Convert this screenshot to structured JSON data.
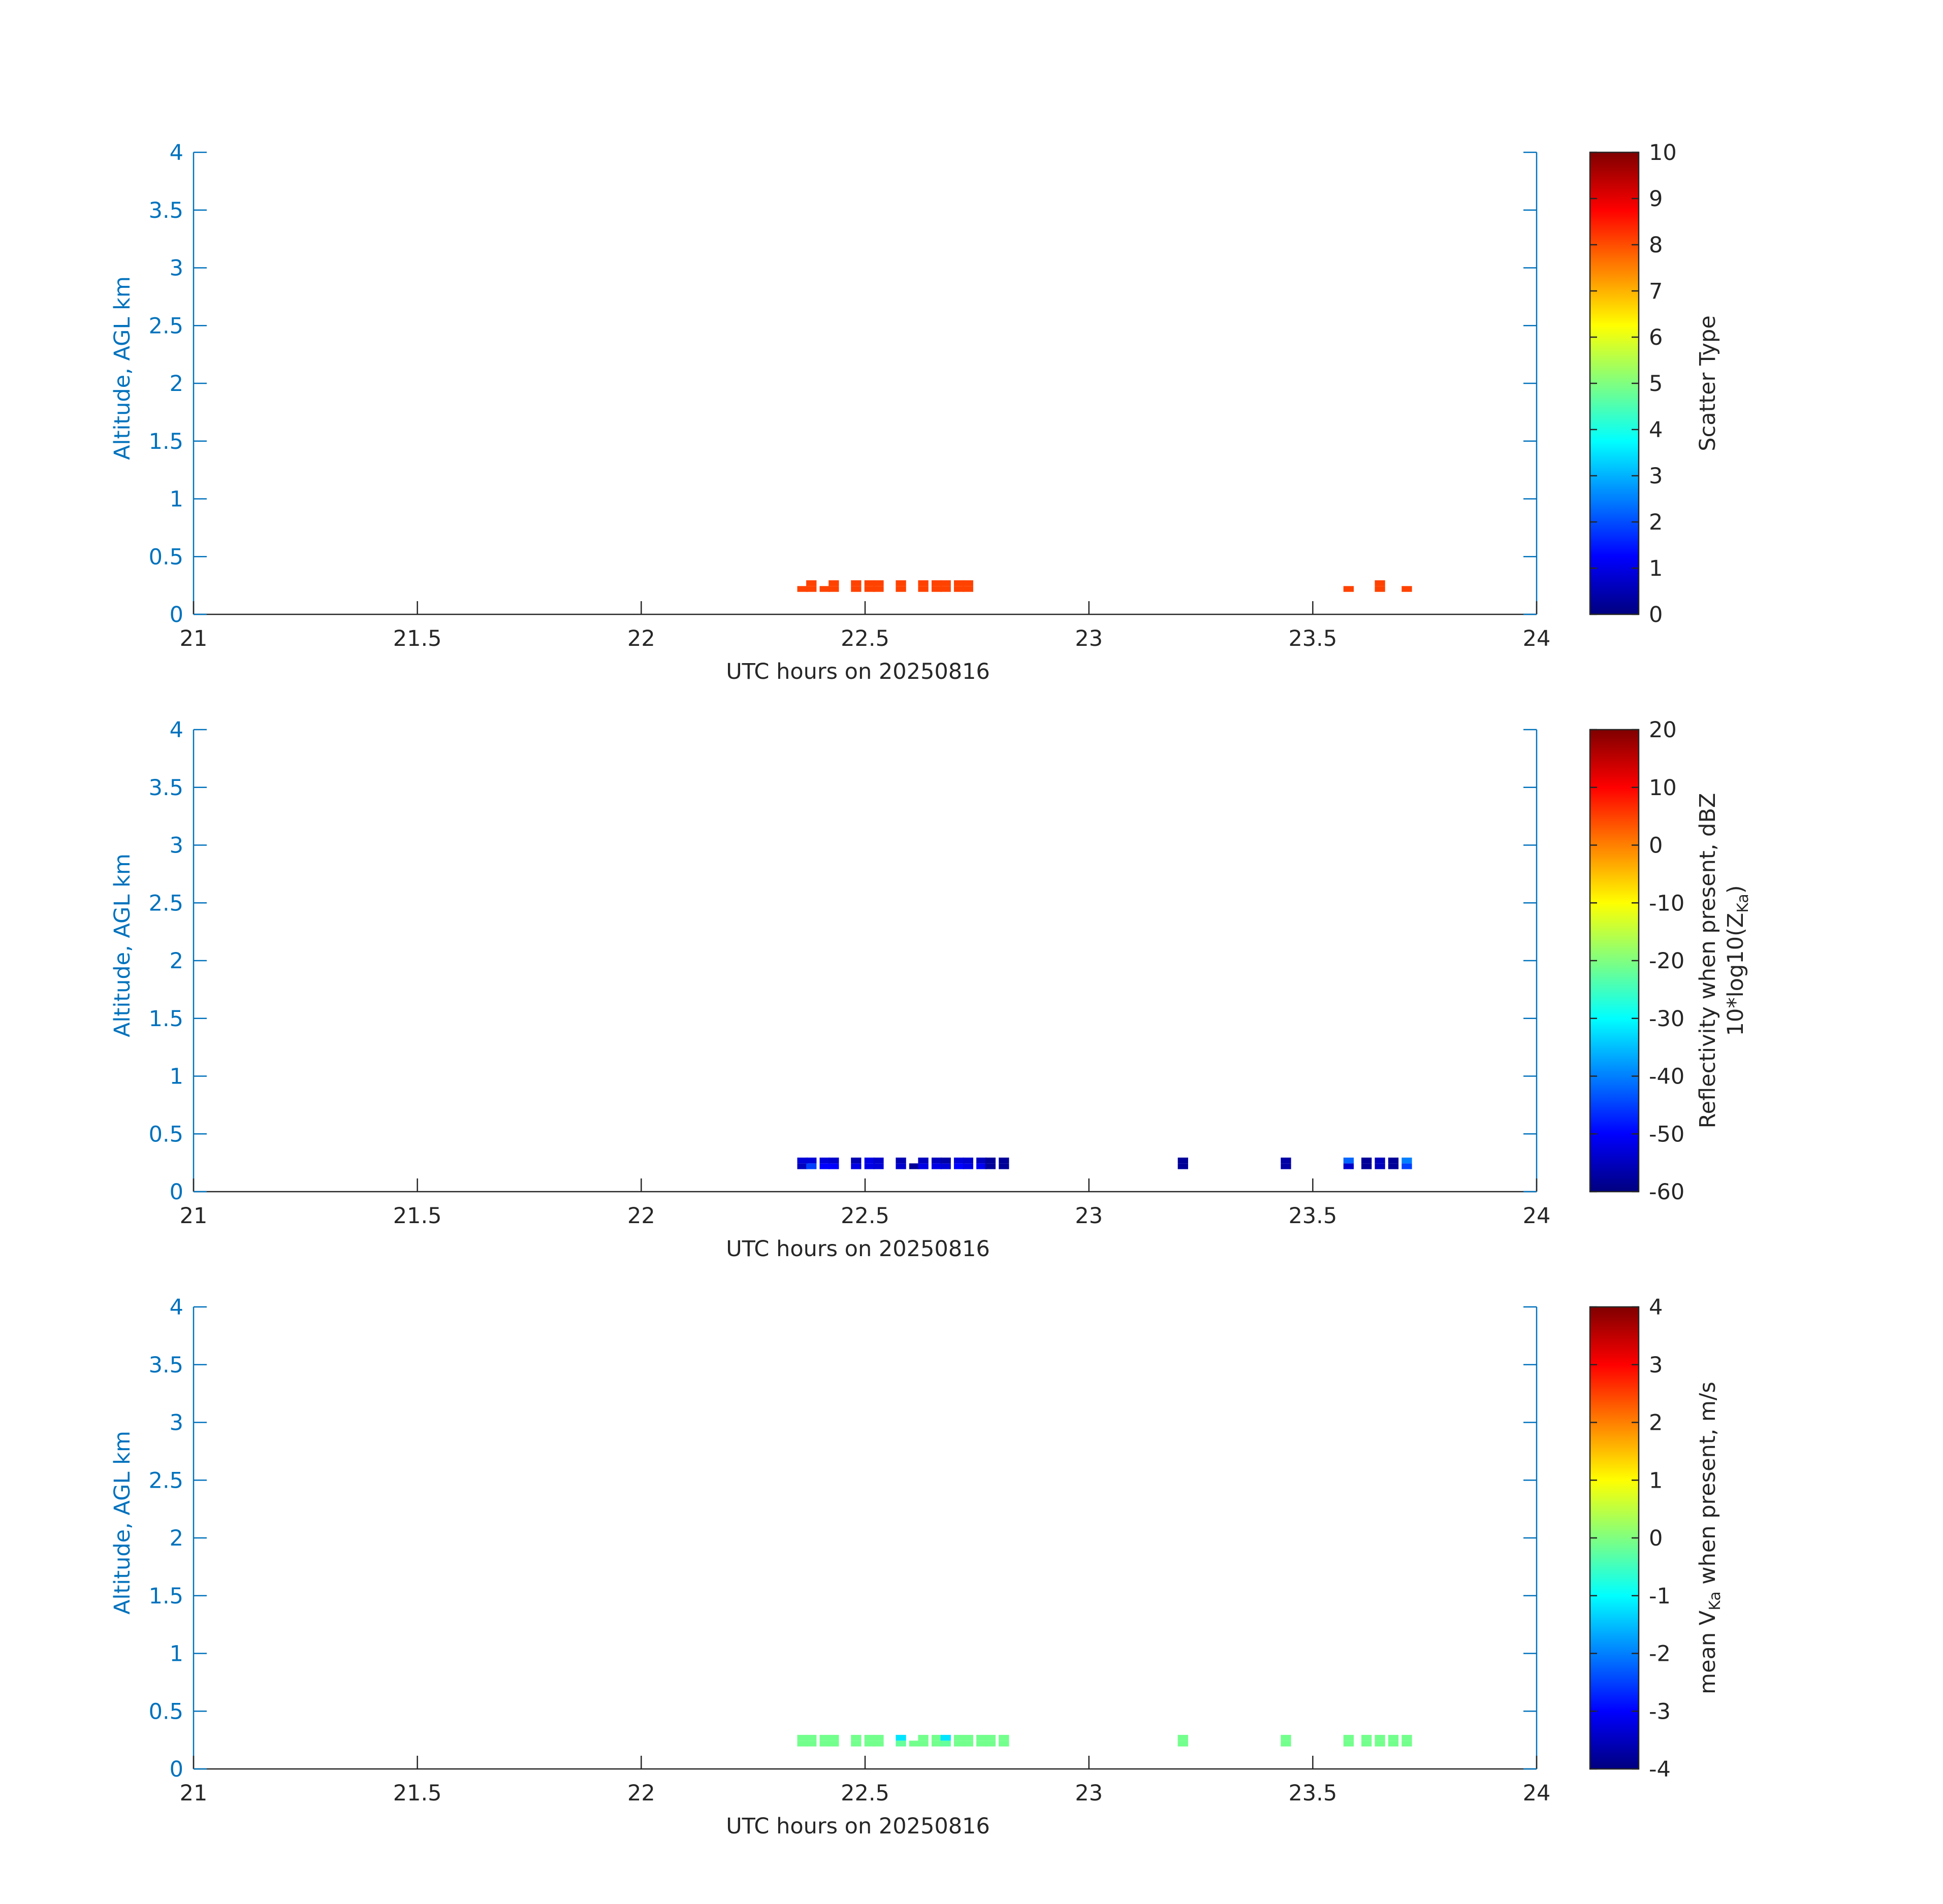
{
  "colors": {
    "y_axis": "#0072BD",
    "x_axis": "#262626",
    "colormap": "jet"
  },
  "chart_data": [
    {
      "type": "heatmap",
      "xlabel": "UTC hours on 20250816",
      "ylabel": "Altitude, AGL km",
      "xlim": [
        21,
        24
      ],
      "ylim": [
        0,
        4
      ],
      "xticks": [
        "21",
        "21.5",
        "22",
        "22.5",
        "23",
        "23.5",
        "24"
      ],
      "yticks": [
        "0",
        "0.5",
        "1",
        "1.5",
        "2",
        "2.5",
        "3",
        "3.5",
        "4"
      ],
      "colorbar": {
        "label": "Scatter Type",
        "label2": "",
        "limits": [
          0,
          10
        ],
        "ticks": [
          "0",
          "1",
          "2",
          "3",
          "4",
          "5",
          "6",
          "7",
          "8",
          "9",
          "10"
        ]
      },
      "cells": [
        {
          "t": 22.36,
          "alt": 0.22,
          "value": 8.1
        },
        {
          "t": 22.38,
          "alt": 0.22,
          "value": 8.1
        },
        {
          "t": 22.38,
          "alt": 0.27,
          "value": 8.1
        },
        {
          "t": 22.41,
          "alt": 0.22,
          "value": 8.1
        },
        {
          "t": 22.43,
          "alt": 0.22,
          "value": 8.1
        },
        {
          "t": 22.43,
          "alt": 0.27,
          "value": 8.1
        },
        {
          "t": 22.48,
          "alt": 0.22,
          "value": 8.1
        },
        {
          "t": 22.48,
          "alt": 0.27,
          "value": 8.1
        },
        {
          "t": 22.51,
          "alt": 0.22,
          "value": 8.1
        },
        {
          "t": 22.51,
          "alt": 0.27,
          "value": 8.1
        },
        {
          "t": 22.53,
          "alt": 0.22,
          "value": 8.1
        },
        {
          "t": 22.53,
          "alt": 0.27,
          "value": 8.1
        },
        {
          "t": 22.58,
          "alt": 0.22,
          "value": 8.1
        },
        {
          "t": 22.58,
          "alt": 0.27,
          "value": 8.1
        },
        {
          "t": 22.63,
          "alt": 0.22,
          "value": 8.1
        },
        {
          "t": 22.63,
          "alt": 0.27,
          "value": 8.1
        },
        {
          "t": 22.66,
          "alt": 0.22,
          "value": 8.1
        },
        {
          "t": 22.66,
          "alt": 0.27,
          "value": 8.1
        },
        {
          "t": 22.68,
          "alt": 0.22,
          "value": 8.1
        },
        {
          "t": 22.68,
          "alt": 0.27,
          "value": 8.1
        },
        {
          "t": 22.71,
          "alt": 0.22,
          "value": 8.1
        },
        {
          "t": 22.71,
          "alt": 0.27,
          "value": 8.1
        },
        {
          "t": 22.73,
          "alt": 0.22,
          "value": 8.1
        },
        {
          "t": 22.73,
          "alt": 0.27,
          "value": 8.1
        },
        {
          "t": 23.58,
          "alt": 0.22,
          "value": 8.1
        },
        {
          "t": 23.65,
          "alt": 0.22,
          "value": 8.1
        },
        {
          "t": 23.65,
          "alt": 0.27,
          "value": 8.1
        },
        {
          "t": 23.71,
          "alt": 0.22,
          "value": 8.1
        }
      ]
    },
    {
      "type": "heatmap",
      "xlabel": "UTC hours on 20250816",
      "ylabel": "Altitude, AGL km",
      "xlim": [
        21,
        24
      ],
      "ylim": [
        0,
        4
      ],
      "xticks": [
        "21",
        "21.5",
        "22",
        "22.5",
        "23",
        "23.5",
        "24"
      ],
      "yticks": [
        "0",
        "0.5",
        "1",
        "1.5",
        "2",
        "2.5",
        "3",
        "3.5",
        "4"
      ],
      "colorbar": {
        "label": "Reflectivity when present, dBZ",
        "label2": "10*log10(Z",
        "label2_sub": "Ka",
        "label2_end": ")",
        "limits": [
          -60,
          20
        ],
        "ticks": [
          "-60",
          "-50",
          "-40",
          "-30",
          "-20",
          "-10",
          "0",
          "10",
          "20"
        ]
      },
      "cells": [
        {
          "t": 22.36,
          "alt": 0.22,
          "value": -55
        },
        {
          "t": 22.36,
          "alt": 0.27,
          "value": -53
        },
        {
          "t": 22.38,
          "alt": 0.22,
          "value": -45
        },
        {
          "t": 22.38,
          "alt": 0.27,
          "value": -53
        },
        {
          "t": 22.41,
          "alt": 0.22,
          "value": -50
        },
        {
          "t": 22.41,
          "alt": 0.27,
          "value": -53
        },
        {
          "t": 22.43,
          "alt": 0.22,
          "value": -50
        },
        {
          "t": 22.43,
          "alt": 0.27,
          "value": -54
        },
        {
          "t": 22.48,
          "alt": 0.22,
          "value": -52
        },
        {
          "t": 22.48,
          "alt": 0.27,
          "value": -56
        },
        {
          "t": 22.51,
          "alt": 0.22,
          "value": -52
        },
        {
          "t": 22.51,
          "alt": 0.27,
          "value": -52
        },
        {
          "t": 22.53,
          "alt": 0.22,
          "value": -53
        },
        {
          "t": 22.53,
          "alt": 0.27,
          "value": -54
        },
        {
          "t": 22.58,
          "alt": 0.22,
          "value": -54
        },
        {
          "t": 22.58,
          "alt": 0.27,
          "value": -56
        },
        {
          "t": 22.61,
          "alt": 0.22,
          "value": -58
        },
        {
          "t": 22.63,
          "alt": 0.22,
          "value": -52
        },
        {
          "t": 22.63,
          "alt": 0.27,
          "value": -55
        },
        {
          "t": 22.66,
          "alt": 0.22,
          "value": -52
        },
        {
          "t": 22.66,
          "alt": 0.27,
          "value": -55
        },
        {
          "t": 22.68,
          "alt": 0.22,
          "value": -53
        },
        {
          "t": 22.68,
          "alt": 0.27,
          "value": -57
        },
        {
          "t": 22.71,
          "alt": 0.22,
          "value": -50
        },
        {
          "t": 22.71,
          "alt": 0.27,
          "value": -53
        },
        {
          "t": 22.73,
          "alt": 0.22,
          "value": -52
        },
        {
          "t": 22.73,
          "alt": 0.27,
          "value": -54
        },
        {
          "t": 22.76,
          "alt": 0.22,
          "value": -51
        },
        {
          "t": 22.76,
          "alt": 0.27,
          "value": -55
        },
        {
          "t": 22.78,
          "alt": 0.22,
          "value": -58
        },
        {
          "t": 22.78,
          "alt": 0.27,
          "value": -58
        },
        {
          "t": 22.81,
          "alt": 0.22,
          "value": -58
        },
        {
          "t": 22.81,
          "alt": 0.27,
          "value": -58
        },
        {
          "t": 23.21,
          "alt": 0.22,
          "value": -58
        },
        {
          "t": 23.21,
          "alt": 0.27,
          "value": -58
        },
        {
          "t": 23.44,
          "alt": 0.22,
          "value": -57
        },
        {
          "t": 23.44,
          "alt": 0.27,
          "value": -57
        },
        {
          "t": 23.58,
          "alt": 0.22,
          "value": -54
        },
        {
          "t": 23.58,
          "alt": 0.27,
          "value": -42
        },
        {
          "t": 23.62,
          "alt": 0.22,
          "value": -58
        },
        {
          "t": 23.62,
          "alt": 0.27,
          "value": -58
        },
        {
          "t": 23.65,
          "alt": 0.22,
          "value": -55
        },
        {
          "t": 23.65,
          "alt": 0.27,
          "value": -55
        },
        {
          "t": 23.68,
          "alt": 0.22,
          "value": -58
        },
        {
          "t": 23.68,
          "alt": 0.27,
          "value": -58
        },
        {
          "t": 23.71,
          "alt": 0.22,
          "value": -45
        },
        {
          "t": 23.71,
          "alt": 0.27,
          "value": -40
        }
      ]
    },
    {
      "type": "heatmap",
      "xlabel": "UTC hours on 20250816",
      "ylabel": "Altitude, AGL km",
      "xlim": [
        21,
        24
      ],
      "ylim": [
        0,
        4
      ],
      "xticks": [
        "21",
        "21.5",
        "22",
        "22.5",
        "23",
        "23.5",
        "24"
      ],
      "yticks": [
        "0",
        "0.5",
        "1",
        "1.5",
        "2",
        "2.5",
        "3",
        "3.5",
        "4"
      ],
      "colorbar": {
        "label": "mean V",
        "label_sub": "Ka",
        "label_end": " when present, m/s",
        "limits": [
          -4,
          4
        ],
        "ticks": [
          "-4",
          "-3",
          "-2",
          "-1",
          "0",
          "1",
          "2",
          "3",
          "4"
        ]
      },
      "cells": [
        {
          "t": 22.36,
          "alt": 0.22,
          "value": -0.1
        },
        {
          "t": 22.36,
          "alt": 0.27,
          "value": -0.1
        },
        {
          "t": 22.38,
          "alt": 0.22,
          "value": -0.1
        },
        {
          "t": 22.38,
          "alt": 0.27,
          "value": -0.1
        },
        {
          "t": 22.41,
          "alt": 0.22,
          "value": -0.1
        },
        {
          "t": 22.41,
          "alt": 0.27,
          "value": -0.1
        },
        {
          "t": 22.43,
          "alt": 0.22,
          "value": -0.1
        },
        {
          "t": 22.43,
          "alt": 0.27,
          "value": -0.1
        },
        {
          "t": 22.48,
          "alt": 0.22,
          "value": -0.1
        },
        {
          "t": 22.48,
          "alt": 0.27,
          "value": -0.1
        },
        {
          "t": 22.51,
          "alt": 0.22,
          "value": -0.1
        },
        {
          "t": 22.51,
          "alt": 0.27,
          "value": -0.1
        },
        {
          "t": 22.53,
          "alt": 0.22,
          "value": -0.1
        },
        {
          "t": 22.53,
          "alt": 0.27,
          "value": -0.1
        },
        {
          "t": 22.58,
          "alt": 0.22,
          "value": -0.2
        },
        {
          "t": 22.58,
          "alt": 0.27,
          "value": -1.2
        },
        {
          "t": 22.61,
          "alt": 0.22,
          "value": -0.1
        },
        {
          "t": 22.63,
          "alt": 0.22,
          "value": -0.1
        },
        {
          "t": 22.63,
          "alt": 0.27,
          "value": -0.1
        },
        {
          "t": 22.66,
          "alt": 0.22,
          "value": -0.1
        },
        {
          "t": 22.66,
          "alt": 0.27,
          "value": -0.1
        },
        {
          "t": 22.68,
          "alt": 0.22,
          "value": -0.2
        },
        {
          "t": 22.68,
          "alt": 0.27,
          "value": -1.2
        },
        {
          "t": 22.71,
          "alt": 0.22,
          "value": -0.1
        },
        {
          "t": 22.71,
          "alt": 0.27,
          "value": -0.1
        },
        {
          "t": 22.73,
          "alt": 0.22,
          "value": -0.1
        },
        {
          "t": 22.73,
          "alt": 0.27,
          "value": -0.1
        },
        {
          "t": 22.76,
          "alt": 0.22,
          "value": -0.1
        },
        {
          "t": 22.76,
          "alt": 0.27,
          "value": -0.1
        },
        {
          "t": 22.78,
          "alt": 0.22,
          "value": -0.1
        },
        {
          "t": 22.78,
          "alt": 0.27,
          "value": -0.1
        },
        {
          "t": 22.81,
          "alt": 0.22,
          "value": -0.1
        },
        {
          "t": 22.81,
          "alt": 0.27,
          "value": -0.1
        },
        {
          "t": 23.21,
          "alt": 0.22,
          "value": -0.1
        },
        {
          "t": 23.21,
          "alt": 0.27,
          "value": -0.1
        },
        {
          "t": 23.44,
          "alt": 0.22,
          "value": -0.1
        },
        {
          "t": 23.44,
          "alt": 0.27,
          "value": -0.1
        },
        {
          "t": 23.58,
          "alt": 0.22,
          "value": -0.1
        },
        {
          "t": 23.58,
          "alt": 0.27,
          "value": -0.1
        },
        {
          "t": 23.62,
          "alt": 0.22,
          "value": -0.1
        },
        {
          "t": 23.62,
          "alt": 0.27,
          "value": -0.1
        },
        {
          "t": 23.65,
          "alt": 0.22,
          "value": -0.1
        },
        {
          "t": 23.65,
          "alt": 0.27,
          "value": -0.1
        },
        {
          "t": 23.68,
          "alt": 0.22,
          "value": -0.1
        },
        {
          "t": 23.68,
          "alt": 0.27,
          "value": -0.1
        },
        {
          "t": 23.71,
          "alt": 0.22,
          "value": -0.1
        },
        {
          "t": 23.71,
          "alt": 0.27,
          "value": -0.1
        }
      ]
    }
  ]
}
